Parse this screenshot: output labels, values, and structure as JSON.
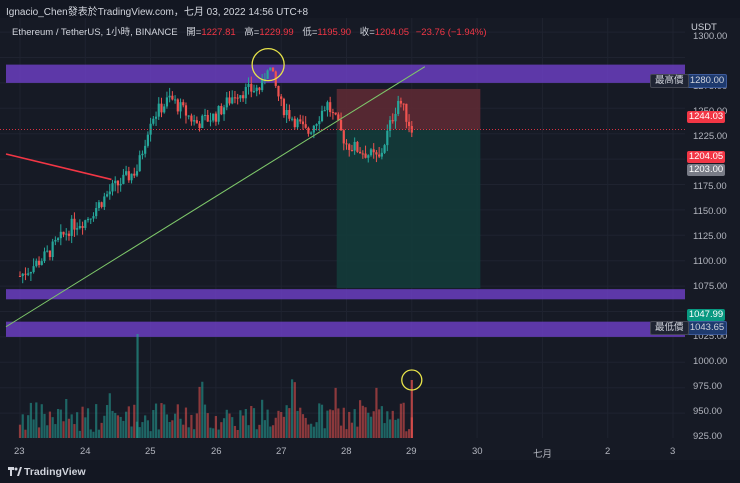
{
  "topbar": {
    "title": "Ignacio_Chen發表於TradingView.com，七月 03, 2022 14:56 UTC+8"
  },
  "legend": {
    "symbol": "Ethereum / TetherUS, 1小時, BINANCE",
    "open_label": "開=",
    "open": "1227.81",
    "high_label": "高=",
    "high": "1229.99",
    "low_label": "低=",
    "low": "1195.90",
    "close_label": "收=",
    "close": "1204.05",
    "change": "−23.76 (−1.94%)"
  },
  "yaxis": {
    "unit": "USDT",
    "ticks": [
      "1300.00",
      "1275.00",
      "1250.00",
      "1225.00",
      "1200.00",
      "1175.00",
      "1150.00",
      "1125.00",
      "1100.00",
      "1075.00",
      "1050.00",
      "1025.00",
      "1000.00",
      "975.00",
      "950.00",
      "925.00"
    ]
  },
  "xaxis": {
    "ticks": [
      "23",
      "24",
      "25",
      "26",
      "27",
      "28",
      "29",
      "30",
      "七月",
      "2",
      "3"
    ]
  },
  "labels": {
    "high_tag": "最高價",
    "high_value": "1280.00",
    "low_tag": "最低價",
    "low_value": "1043.65",
    "target_value": "1244.03",
    "last_value": "1204.05",
    "prev_value": "1203.00",
    "stop_value": "1047.99"
  },
  "colors": {
    "up": "#26a69a",
    "down": "#ef5350",
    "zone": "#6a3ec0",
    "bg": "#161a25"
  },
  "footer": {
    "brand": "TradingView"
  },
  "chart_data": {
    "type": "candlestick",
    "title": "Ethereum / TetherUS, 1小時, BINANCE",
    "ylim": [
      925,
      1300
    ],
    "resistance_zone": [
      1250,
      1268
    ],
    "support_zone": [
      1037,
      1047
    ],
    "lower_zone": [
      1000,
      1015
    ],
    "position": {
      "entry": 1204.05,
      "target": 1244.03,
      "stop": 1047.99
    },
    "price_path": [
      [
        "23",
        1060
      ],
      [
        "23.4",
        1080
      ],
      [
        "23.8",
        1110
      ],
      [
        "24",
        1115
      ],
      [
        "24.4",
        1145
      ],
      [
        "24.8",
        1165
      ],
      [
        "25",
        1215
      ],
      [
        "25.3",
        1235
      ],
      [
        "25.7",
        1210
      ],
      [
        "26",
        1218
      ],
      [
        "26.3",
        1240
      ],
      [
        "26.7",
        1245
      ],
      [
        "26.8",
        1270
      ],
      [
        "27",
        1228
      ],
      [
        "27.4",
        1200
      ],
      [
        "27.7",
        1230
      ],
      [
        "28",
        1190
      ],
      [
        "28.5",
        1175
      ],
      [
        "28.8",
        1235
      ],
      [
        "29",
        1204
      ]
    ]
  }
}
